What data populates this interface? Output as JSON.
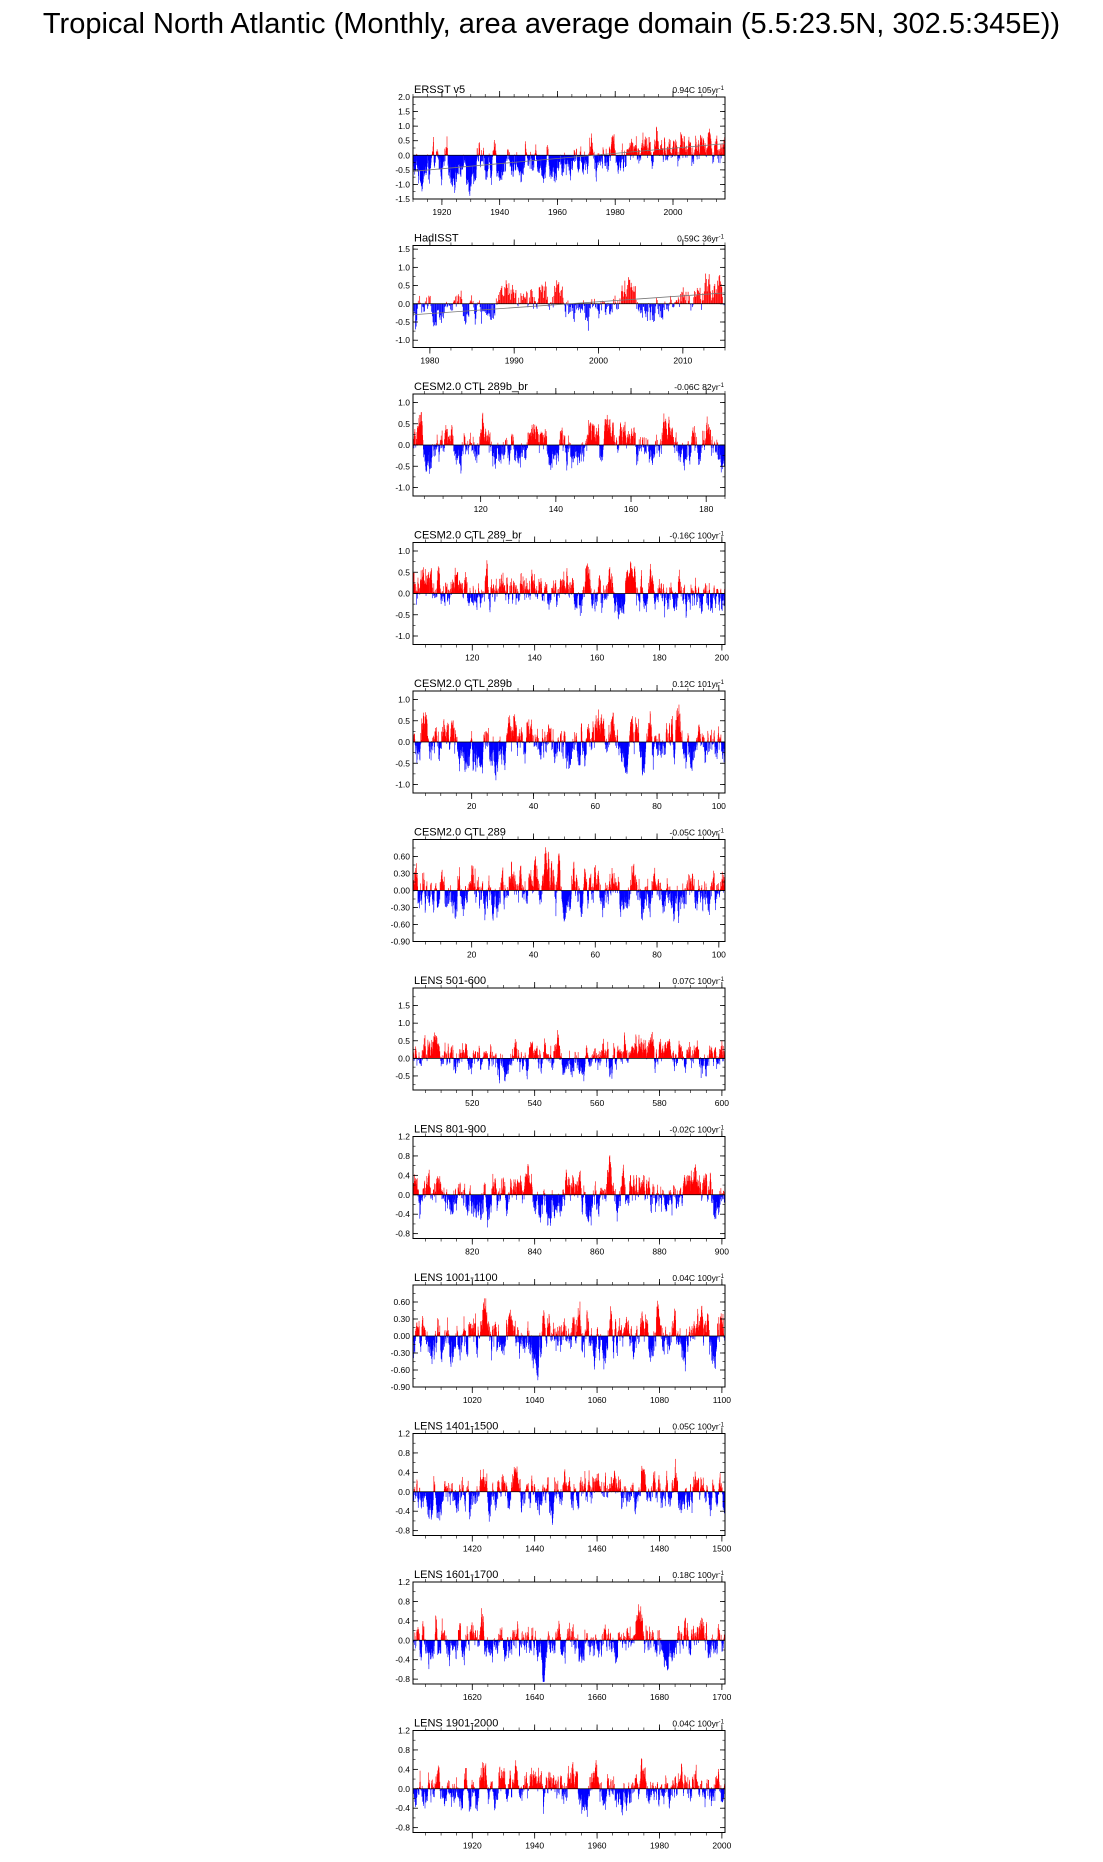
{
  "title": "Tropical North Atlantic (Monthly, area average domain (5.5:23.5N, 302.5:345E))",
  "colors": {
    "positive": "#ff0000",
    "negative": "#0000ff",
    "zero_line": "#000000"
  },
  "chart_data": [
    {
      "type": "bar",
      "title": "ERSST v5",
      "trend_label": "0.94C 105yr",
      "trend_exp": "-1",
      "xlim": [
        1910,
        2018
      ],
      "ylim": [
        -1.5,
        2.0
      ],
      "yticks": [
        "2.0",
        "1.5",
        "1.0",
        "0.5",
        "0.0",
        "-0.5",
        "-1.0",
        "-1.5"
      ],
      "yticks_values": [
        2.0,
        1.5,
        1.0,
        0.5,
        0.0,
        -0.5,
        -1.0,
        -1.5
      ],
      "xticks": [
        1920,
        1940,
        1960,
        1980,
        2000
      ],
      "xtick_labels": [
        "1920",
        "1940",
        "1960",
        "1980",
        "2000"
      ],
      "trend_start": -0.55,
      "trend_end": 0.4,
      "amp": 0.45,
      "trend_line": true
    },
    {
      "type": "bar",
      "title": "HadISST",
      "trend_label": "0.59C 36yr",
      "trend_exp": "-1",
      "xlim": [
        1978,
        2015
      ],
      "ylim": [
        -1.2,
        1.6
      ],
      "yticks": [
        "1.5",
        "1.0",
        "0.5",
        "0.0",
        "-0.5",
        "-1.0"
      ],
      "yticks_values": [
        1.5,
        1.0,
        0.5,
        0.0,
        -0.5,
        -1.0
      ],
      "xticks": [
        1980,
        1990,
        2000,
        2010
      ],
      "xtick_labels": [
        "1980",
        "1990",
        "2000",
        "2010"
      ],
      "trend_start": -0.3,
      "trend_end": 0.3,
      "amp": 0.4,
      "trend_line": true
    },
    {
      "type": "bar",
      "title": "CESM2.0 CTL 289b_br",
      "trend_label": "-0.06C 82yr",
      "trend_exp": "-1",
      "xlim": [
        102,
        185
      ],
      "ylim": [
        -1.2,
        1.2
      ],
      "yticks": [
        "1.0",
        "0.5",
        "0.0",
        "-0.5",
        "-1.0"
      ],
      "yticks_values": [
        1.0,
        0.5,
        0.0,
        -0.5,
        -1.0
      ],
      "xticks": [
        120,
        140,
        160,
        180
      ],
      "xtick_labels": [
        "120",
        "140",
        "160",
        "180"
      ],
      "trend_start": 0,
      "trend_end": 0,
      "amp": 0.35,
      "trend_line": false
    },
    {
      "type": "bar",
      "title": "CESM2.0 CTL 289_br",
      "trend_label": "-0.16C 100yr",
      "trend_exp": "-1",
      "xlim": [
        101,
        201
      ],
      "ylim": [
        -1.2,
        1.2
      ],
      "yticks": [
        "1.0",
        "0.5",
        "0.0",
        "-0.5",
        "-1.0"
      ],
      "yticks_values": [
        1.0,
        0.5,
        0.0,
        -0.5,
        -1.0
      ],
      "xticks": [
        120,
        140,
        160,
        180,
        200
      ],
      "xtick_labels": [
        "120",
        "140",
        "160",
        "180",
        "200"
      ],
      "trend_start": 0,
      "trend_end": 0,
      "amp": 0.35,
      "trend_line": false
    },
    {
      "type": "bar",
      "title": "CESM2.0 CTL 289b",
      "trend_label": "0.12C 101yr",
      "trend_exp": "-1",
      "xlim": [
        1,
        102
      ],
      "ylim": [
        -1.2,
        1.2
      ],
      "yticks": [
        "1.0",
        "0.5",
        "0.0",
        "-0.5",
        "-1.0"
      ],
      "yticks_values": [
        1.0,
        0.5,
        0.0,
        -0.5,
        -1.0
      ],
      "xticks": [
        20,
        40,
        60,
        80,
        100
      ],
      "xtick_labels": [
        "20",
        "40",
        "60",
        "80",
        "100"
      ],
      "trend_start": 0,
      "trend_end": 0,
      "amp": 0.4,
      "trend_line": false
    },
    {
      "type": "bar",
      "title": "CESM2.0 CTL 289",
      "trend_label": "-0.05C 100yr",
      "trend_exp": "-1",
      "xlim": [
        1,
        102
      ],
      "ylim": [
        -0.9,
        0.9
      ],
      "yticks": [
        "0.60",
        "0.30",
        "0.00",
        "-0.30",
        "-0.60",
        "-0.90"
      ],
      "yticks_values": [
        0.6,
        0.3,
        0.0,
        -0.3,
        -0.6,
        -0.9
      ],
      "xticks": [
        20,
        40,
        60,
        80,
        100
      ],
      "xtick_labels": [
        "20",
        "40",
        "60",
        "80",
        "100"
      ],
      "trend_start": 0,
      "trend_end": 0,
      "amp": 0.3,
      "trend_line": false
    },
    {
      "type": "bar",
      "title": "LENS 501-600",
      "trend_label": "0.07C 100yr",
      "trend_exp": "-1",
      "xlim": [
        501,
        601
      ],
      "ylim": [
        -0.9,
        2.0
      ],
      "yticks": [
        "1.5",
        "1.0",
        "0.5",
        "0.0",
        "-0.5"
      ],
      "yticks_values": [
        1.5,
        1.0,
        0.5,
        0.0,
        -0.5
      ],
      "xticks": [
        520,
        540,
        560,
        580,
        600
      ],
      "xtick_labels": [
        "520",
        "540",
        "560",
        "580",
        "600"
      ],
      "trend_start": 0,
      "trend_end": 0,
      "amp": 0.35,
      "trend_line": false
    },
    {
      "type": "bar",
      "title": "LENS 801-900",
      "trend_label": "-0.02C 100yr",
      "trend_exp": "-1",
      "xlim": [
        801,
        901
      ],
      "ylim": [
        -0.9,
        1.2
      ],
      "yticks": [
        "1.2",
        "0.8",
        "0.4",
        "0.0",
        "-0.4",
        "-0.8"
      ],
      "yticks_values": [
        1.2,
        0.8,
        0.4,
        0.0,
        -0.4,
        -0.8
      ],
      "xticks": [
        820,
        840,
        860,
        880,
        900
      ],
      "xtick_labels": [
        "820",
        "840",
        "860",
        "880",
        "900"
      ],
      "trend_start": 0,
      "trend_end": 0,
      "amp": 0.3,
      "trend_line": false
    },
    {
      "type": "bar",
      "title": "LENS 1001-1100",
      "trend_label": "0.04C 100yr",
      "trend_exp": "-1",
      "xlim": [
        1001,
        1101
      ],
      "ylim": [
        -0.9,
        0.9
      ],
      "yticks": [
        "0.60",
        "0.30",
        "0.00",
        "-0.30",
        "-0.60",
        "-0.90"
      ],
      "yticks_values": [
        0.6,
        0.3,
        0.0,
        -0.3,
        -0.6,
        -0.9
      ],
      "xticks": [
        1020,
        1040,
        1060,
        1080,
        1100
      ],
      "xtick_labels": [
        "1020",
        "1040",
        "1060",
        "1080",
        "1100"
      ],
      "trend_start": 0,
      "trend_end": 0,
      "amp": 0.3,
      "trend_line": false
    },
    {
      "type": "bar",
      "title": "LENS 1401-1500",
      "trend_label": "0.05C 100yr",
      "trend_exp": "-1",
      "xlim": [
        1401,
        1501
      ],
      "ylim": [
        -0.9,
        1.2
      ],
      "yticks": [
        "1.2",
        "0.8",
        "0.4",
        "0.0",
        "-0.4",
        "-0.8"
      ],
      "yticks_values": [
        1.2,
        0.8,
        0.4,
        0.0,
        -0.4,
        -0.8
      ],
      "xticks": [
        1420,
        1440,
        1460,
        1480,
        1500
      ],
      "xtick_labels": [
        "1420",
        "1440",
        "1460",
        "1480",
        "1500"
      ],
      "trend_start": 0,
      "trend_end": 0,
      "amp": 0.3,
      "trend_line": false
    },
    {
      "type": "bar",
      "title": "LENS 1601-1700",
      "trend_label": "0.18C 100yr",
      "trend_exp": "-1",
      "xlim": [
        1601,
        1701
      ],
      "ylim": [
        -0.9,
        1.2
      ],
      "yticks": [
        "1.2",
        "0.8",
        "0.4",
        "0.0",
        "-0.4",
        "-0.8"
      ],
      "yticks_values": [
        1.2,
        0.8,
        0.4,
        0.0,
        -0.4,
        -0.8
      ],
      "xticks": [
        1620,
        1640,
        1660,
        1680,
        1700
      ],
      "xtick_labels": [
        "1620",
        "1640",
        "1660",
        "1680",
        "1700"
      ],
      "trend_start": 0,
      "trend_end": 0,
      "amp": 0.3,
      "trend_line": false
    },
    {
      "type": "bar",
      "title": "LENS 1901-2000",
      "trend_label": "0.04C 100yr",
      "trend_exp": "-1",
      "xlim": [
        1901,
        2001
      ],
      "ylim": [
        -0.9,
        1.2
      ],
      "yticks": [
        "1.2",
        "0.8",
        "0.4",
        "0.0",
        "-0.4",
        "-0.8"
      ],
      "yticks_values": [
        1.2,
        0.8,
        0.4,
        0.0,
        -0.4,
        -0.8
      ],
      "xticks": [
        1920,
        1940,
        1960,
        1980,
        2000
      ],
      "xtick_labels": [
        "1920",
        "1940",
        "1960",
        "1980",
        "2000"
      ],
      "trend_start": 0,
      "trend_end": 0,
      "amp": 0.3,
      "trend_line": false
    }
  ]
}
